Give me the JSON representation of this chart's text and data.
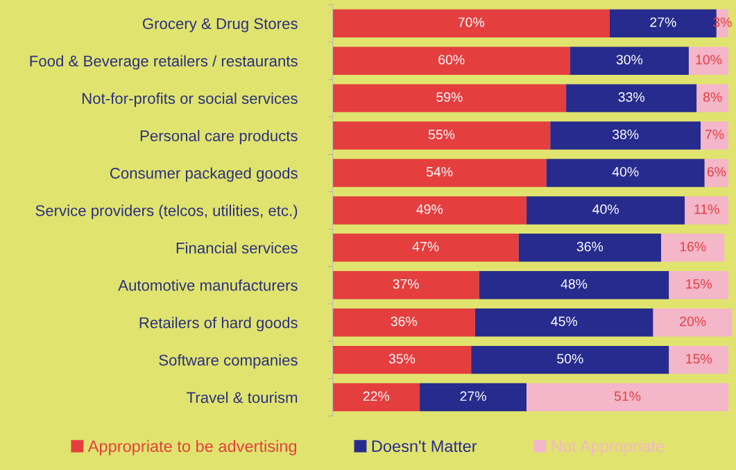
{
  "chart_data": {
    "type": "bar",
    "orientation": "horizontal",
    "stacked": true,
    "legend": "bottom",
    "grid": false,
    "categories": [
      "Grocery & Drug Stores",
      "Food & Beverage retailers / restaurants",
      "Not-for-profits or social services",
      "Personal care products",
      "Consumer packaged goods",
      "Service providers (telcos, utilities, etc.)",
      "Financial services",
      "Automotive manufacturers",
      "Retailers of hard goods",
      "Software companies",
      "Travel & tourism"
    ],
    "series": [
      {
        "name": "Appropriate to be advertising",
        "color": "#e53e3f",
        "values": [
          70,
          60,
          59,
          55,
          54,
          49,
          47,
          37,
          36,
          35,
          22
        ],
        "value_labels": [
          "70%",
          "60%",
          "59%",
          "55%",
          "54%",
          "49%",
          "47%",
          "37%",
          "36%",
          "35%",
          "22%"
        ]
      },
      {
        "name": "Doesn't Matter",
        "color": "#272b8d",
        "values": [
          27,
          30,
          33,
          38,
          40,
          40,
          36,
          48,
          45,
          50,
          27
        ],
        "value_labels": [
          "27%",
          "30%",
          "33%",
          "38%",
          "40%",
          "40%",
          "36%",
          "48%",
          "45%",
          "50%",
          "27%"
        ]
      },
      {
        "name": "Not Appropriate",
        "color": "#f4b6c9",
        "values": [
          3,
          10,
          8,
          7,
          6,
          11,
          16,
          15,
          20,
          15,
          51
        ],
        "value_labels": [
          "3%",
          "10%",
          "8%",
          "7%",
          "6%",
          "11%",
          "16%",
          "15%",
          "20%",
          "15%",
          "51%"
        ]
      }
    ]
  }
}
